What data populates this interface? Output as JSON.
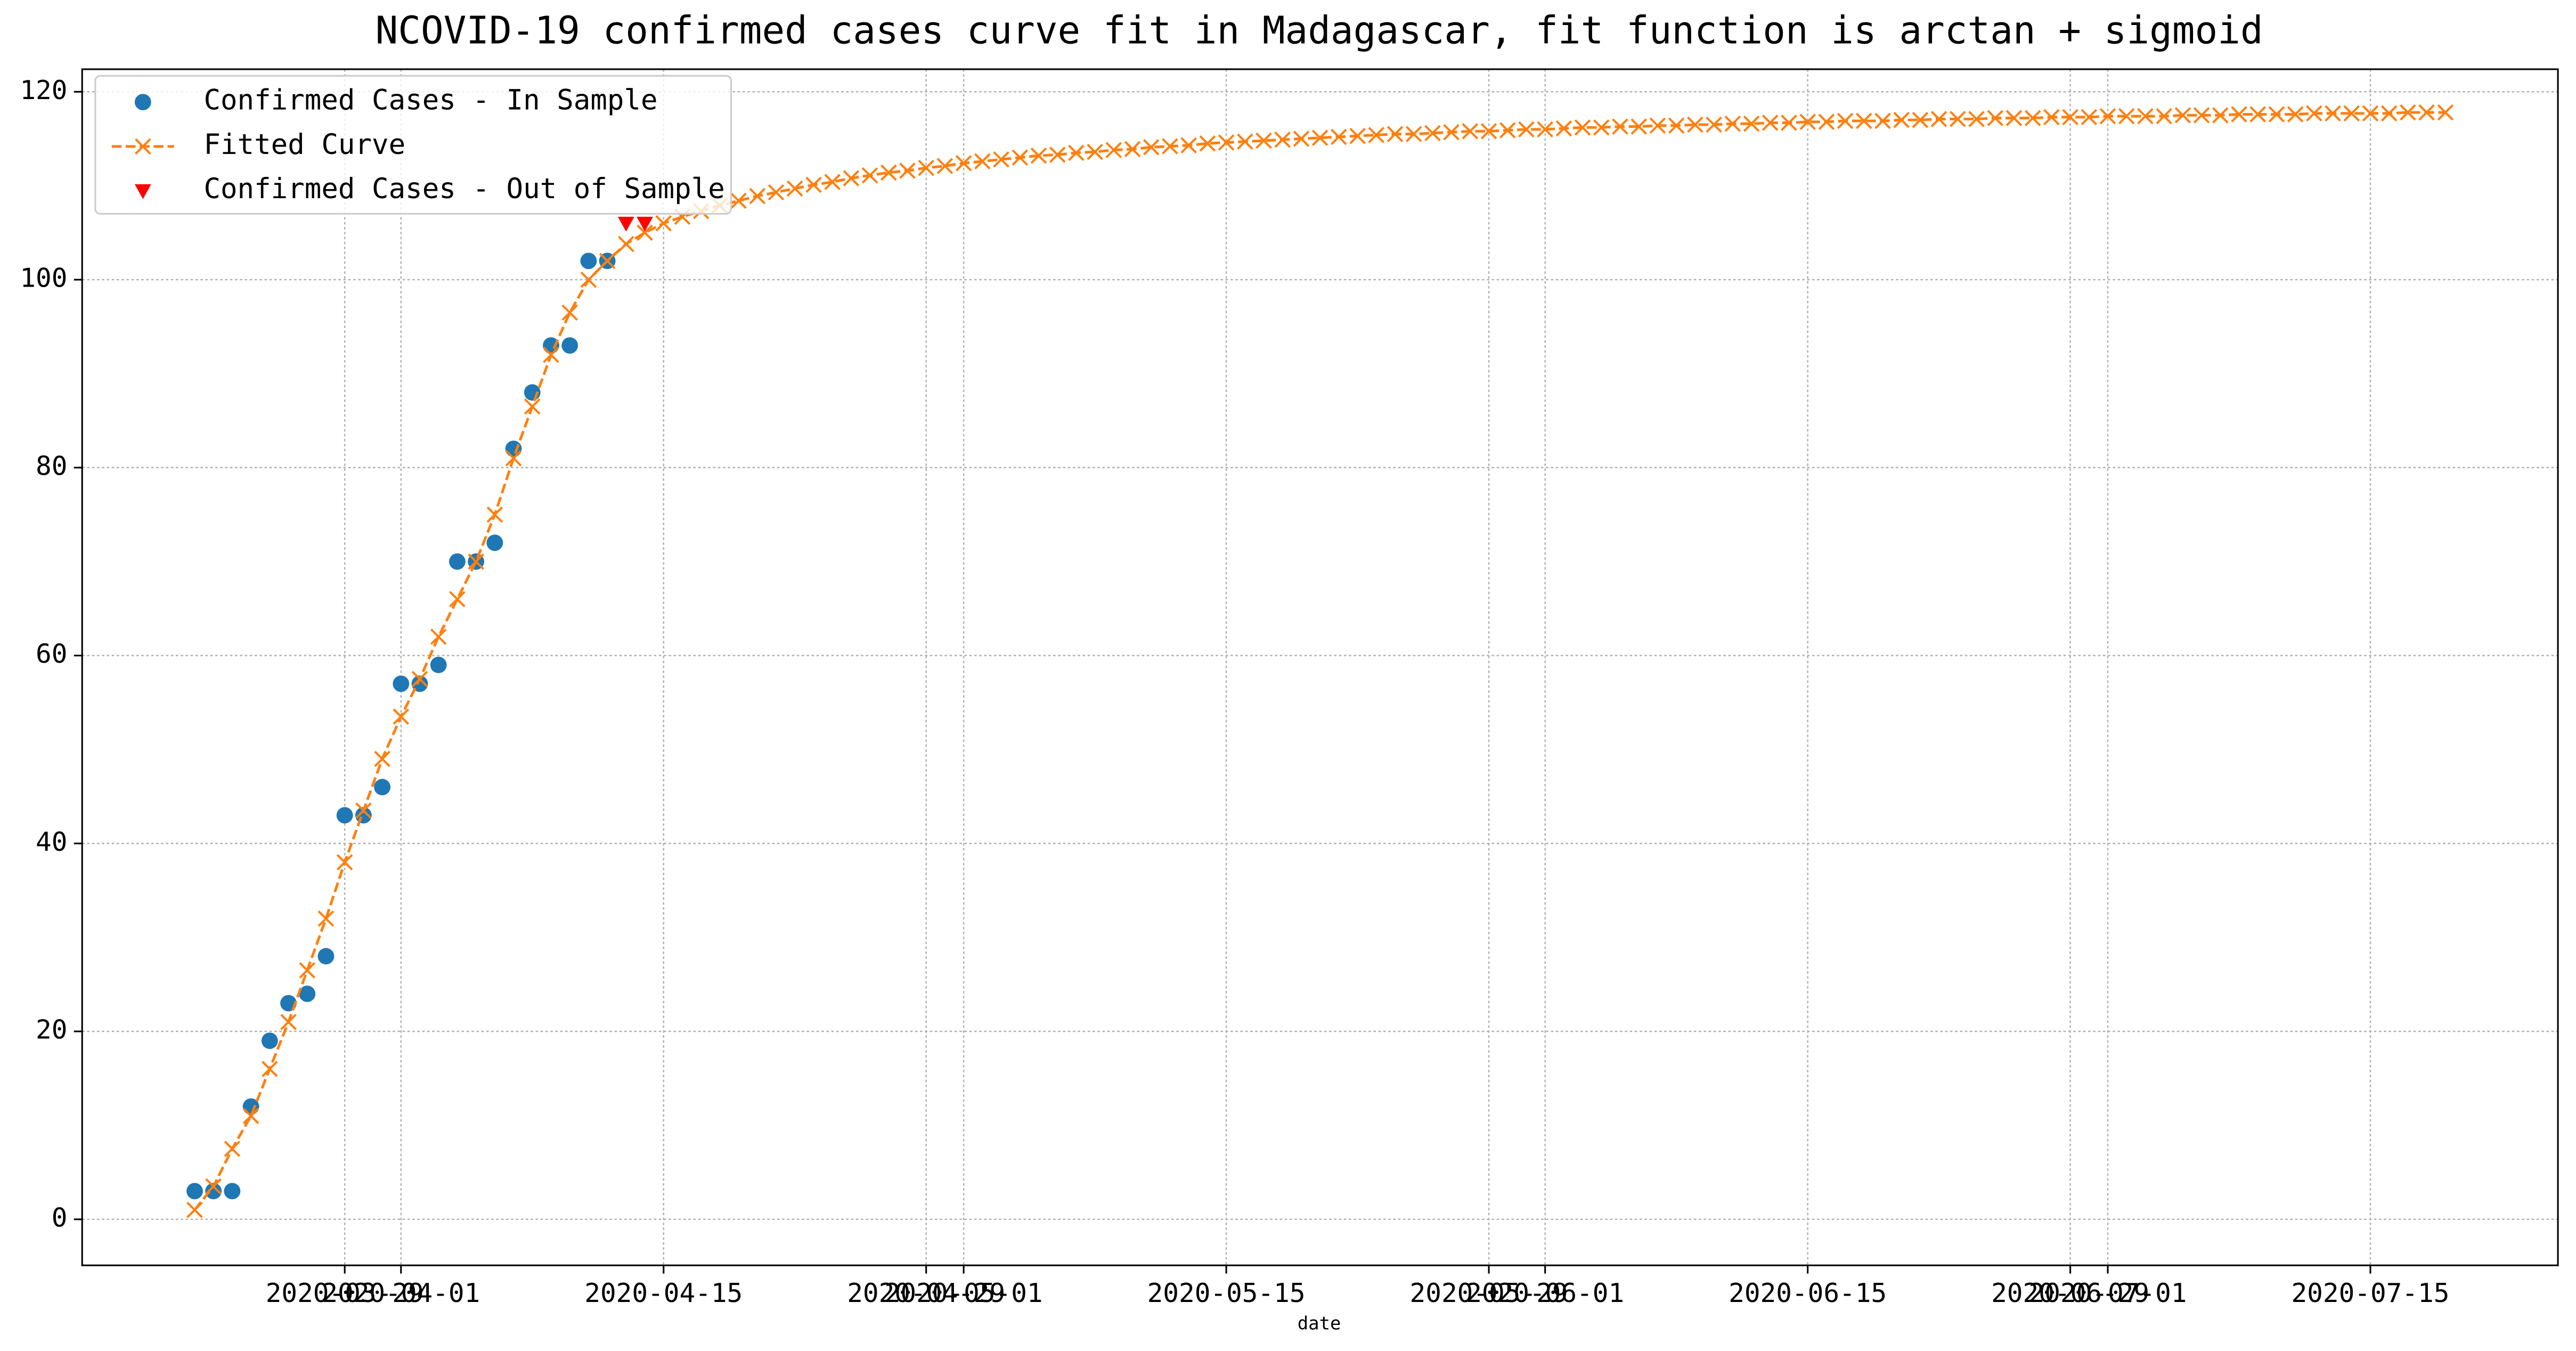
{
  "chart_data": {
    "type": "line",
    "title": "NCOVID-19 confirmed cases curve fit in Madagascar, fit function is arctan + sigmoid",
    "x_label": "date",
    "xlim": [
      "2020-03-15",
      "2020-07-25"
    ],
    "xticks": [
      "2020-03-29",
      "2020-04-01",
      "2020-04-15",
      "2020-04-29",
      "2020-05-01",
      "2020-05-15",
      "2020-05-29",
      "2020-06-01",
      "2020-06-15",
      "2020-06-29",
      "2020-07-01",
      "2020-07-15"
    ],
    "ylim": [
      -4.9,
      122.4
    ],
    "yticks": [
      0,
      20,
      40,
      60,
      80,
      100,
      120
    ],
    "grid": true,
    "legend": "upper left",
    "series": [
      {
        "name": "Confirmed Cases - In Sample",
        "color": "#1f77b4",
        "marker": "o",
        "linestyle": "none",
        "x": [
          "2020-03-21",
          "2020-03-22",
          "2020-03-23",
          "2020-03-24",
          "2020-03-25",
          "2020-03-26",
          "2020-03-27",
          "2020-03-28",
          "2020-03-29",
          "2020-03-30",
          "2020-03-31",
          "2020-04-01",
          "2020-04-02",
          "2020-04-03",
          "2020-04-04",
          "2020-04-05",
          "2020-04-06",
          "2020-04-07",
          "2020-04-08",
          "2020-04-09",
          "2020-04-10",
          "2020-04-11",
          "2020-04-12"
        ],
        "values": [
          3,
          3,
          3,
          12,
          19,
          23,
          24,
          28,
          43,
          43,
          46,
          57,
          57,
          59,
          70,
          70,
          72,
          82,
          88,
          93,
          93,
          102,
          102
        ]
      },
      {
        "name": "Fitted Curve",
        "color": "#ff7f0e",
        "marker": "x",
        "linestyle": "--",
        "x": [
          "2020-03-21",
          "2020-03-22",
          "2020-03-23",
          "2020-03-24",
          "2020-03-25",
          "2020-03-26",
          "2020-03-27",
          "2020-03-28",
          "2020-03-29",
          "2020-03-30",
          "2020-03-31",
          "2020-04-01",
          "2020-04-02",
          "2020-04-03",
          "2020-04-04",
          "2020-04-05",
          "2020-04-06",
          "2020-04-07",
          "2020-04-08",
          "2020-04-09",
          "2020-04-10",
          "2020-04-11",
          "2020-04-12",
          "2020-04-13",
          "2020-04-14",
          "2020-04-15",
          "2020-04-16",
          "2020-04-17",
          "2020-04-18",
          "2020-04-19",
          "2020-04-20",
          "2020-04-21",
          "2020-04-22",
          "2020-04-23",
          "2020-04-24",
          "2020-04-25",
          "2020-04-26",
          "2020-04-27",
          "2020-04-28",
          "2020-04-29",
          "2020-04-30",
          "2020-05-01",
          "2020-05-02",
          "2020-05-03",
          "2020-05-04",
          "2020-05-05",
          "2020-05-06",
          "2020-05-07",
          "2020-05-08",
          "2020-05-09",
          "2020-05-10",
          "2020-05-11",
          "2020-05-12",
          "2020-05-13",
          "2020-05-14",
          "2020-05-15",
          "2020-05-16",
          "2020-05-17",
          "2020-05-18",
          "2020-05-19",
          "2020-05-20",
          "2020-05-21",
          "2020-05-22",
          "2020-05-23",
          "2020-05-24",
          "2020-05-25",
          "2020-05-26",
          "2020-05-27",
          "2020-05-28",
          "2020-05-29",
          "2020-05-30",
          "2020-05-31",
          "2020-06-01",
          "2020-06-02",
          "2020-06-03",
          "2020-06-04",
          "2020-06-05",
          "2020-06-06",
          "2020-06-07",
          "2020-06-08",
          "2020-06-09",
          "2020-06-10",
          "2020-06-11",
          "2020-06-12",
          "2020-06-13",
          "2020-06-14",
          "2020-06-15",
          "2020-06-16",
          "2020-06-17",
          "2020-06-18",
          "2020-06-19",
          "2020-06-20",
          "2020-06-21",
          "2020-06-22",
          "2020-06-23",
          "2020-06-24",
          "2020-06-25",
          "2020-06-26",
          "2020-06-27",
          "2020-06-28",
          "2020-06-29",
          "2020-06-30",
          "2020-07-01",
          "2020-07-02",
          "2020-07-03",
          "2020-07-04",
          "2020-07-05",
          "2020-07-06",
          "2020-07-07",
          "2020-07-08",
          "2020-07-09",
          "2020-07-10",
          "2020-07-11",
          "2020-07-12",
          "2020-07-13",
          "2020-07-14",
          "2020-07-15",
          "2020-07-16",
          "2020-07-17",
          "2020-07-18",
          "2020-07-19"
        ],
        "values": [
          1,
          3.5,
          7.5,
          11,
          16,
          21,
          26.5,
          32,
          38,
          43.5,
          49,
          53.5,
          57.5,
          62,
          66,
          70,
          75,
          81,
          86.5,
          92,
          96.5,
          100,
          102,
          103.8,
          105,
          106.0,
          106.7,
          107.3,
          107.9,
          108.4,
          108.9,
          109.3,
          109.7,
          110.1,
          110.4,
          110.8,
          111.1,
          111.4,
          111.6,
          111.9,
          112.1,
          112.4,
          112.6,
          112.8,
          113.0,
          113.2,
          113.3,
          113.5,
          113.6,
          113.8,
          113.9,
          114.1,
          114.2,
          114.3,
          114.5,
          114.6,
          114.7,
          114.8,
          114.9,
          115.0,
          115.1,
          115.2,
          115.3,
          115.4,
          115.5,
          115.5,
          115.6,
          115.7,
          115.8,
          115.8,
          115.9,
          116.0,
          116.0,
          116.1,
          116.2,
          116.2,
          116.3,
          116.3,
          116.4,
          116.4,
          116.5,
          116.5,
          116.6,
          116.6,
          116.7,
          116.7,
          116.8,
          116.8,
          116.9,
          116.9,
          116.9,
          117.0,
          117.0,
          117.1,
          117.1,
          117.1,
          117.2,
          117.2,
          117.2,
          117.3,
          117.3,
          117.3,
          117.4,
          117.4,
          117.4,
          117.4,
          117.5,
          117.5,
          117.5,
          117.6,
          117.6,
          117.6,
          117.6,
          117.7,
          117.7,
          117.7,
          117.7,
          117.7,
          117.8,
          117.8,
          117.8
        ]
      },
      {
        "name": "Confirmed Cases - Out of Sample",
        "color": "#ff0000",
        "marker": "v",
        "linestyle": "none",
        "x": [
          "2020-04-13",
          "2020-04-14"
        ],
        "values": [
          106,
          106
        ]
      }
    ]
  }
}
